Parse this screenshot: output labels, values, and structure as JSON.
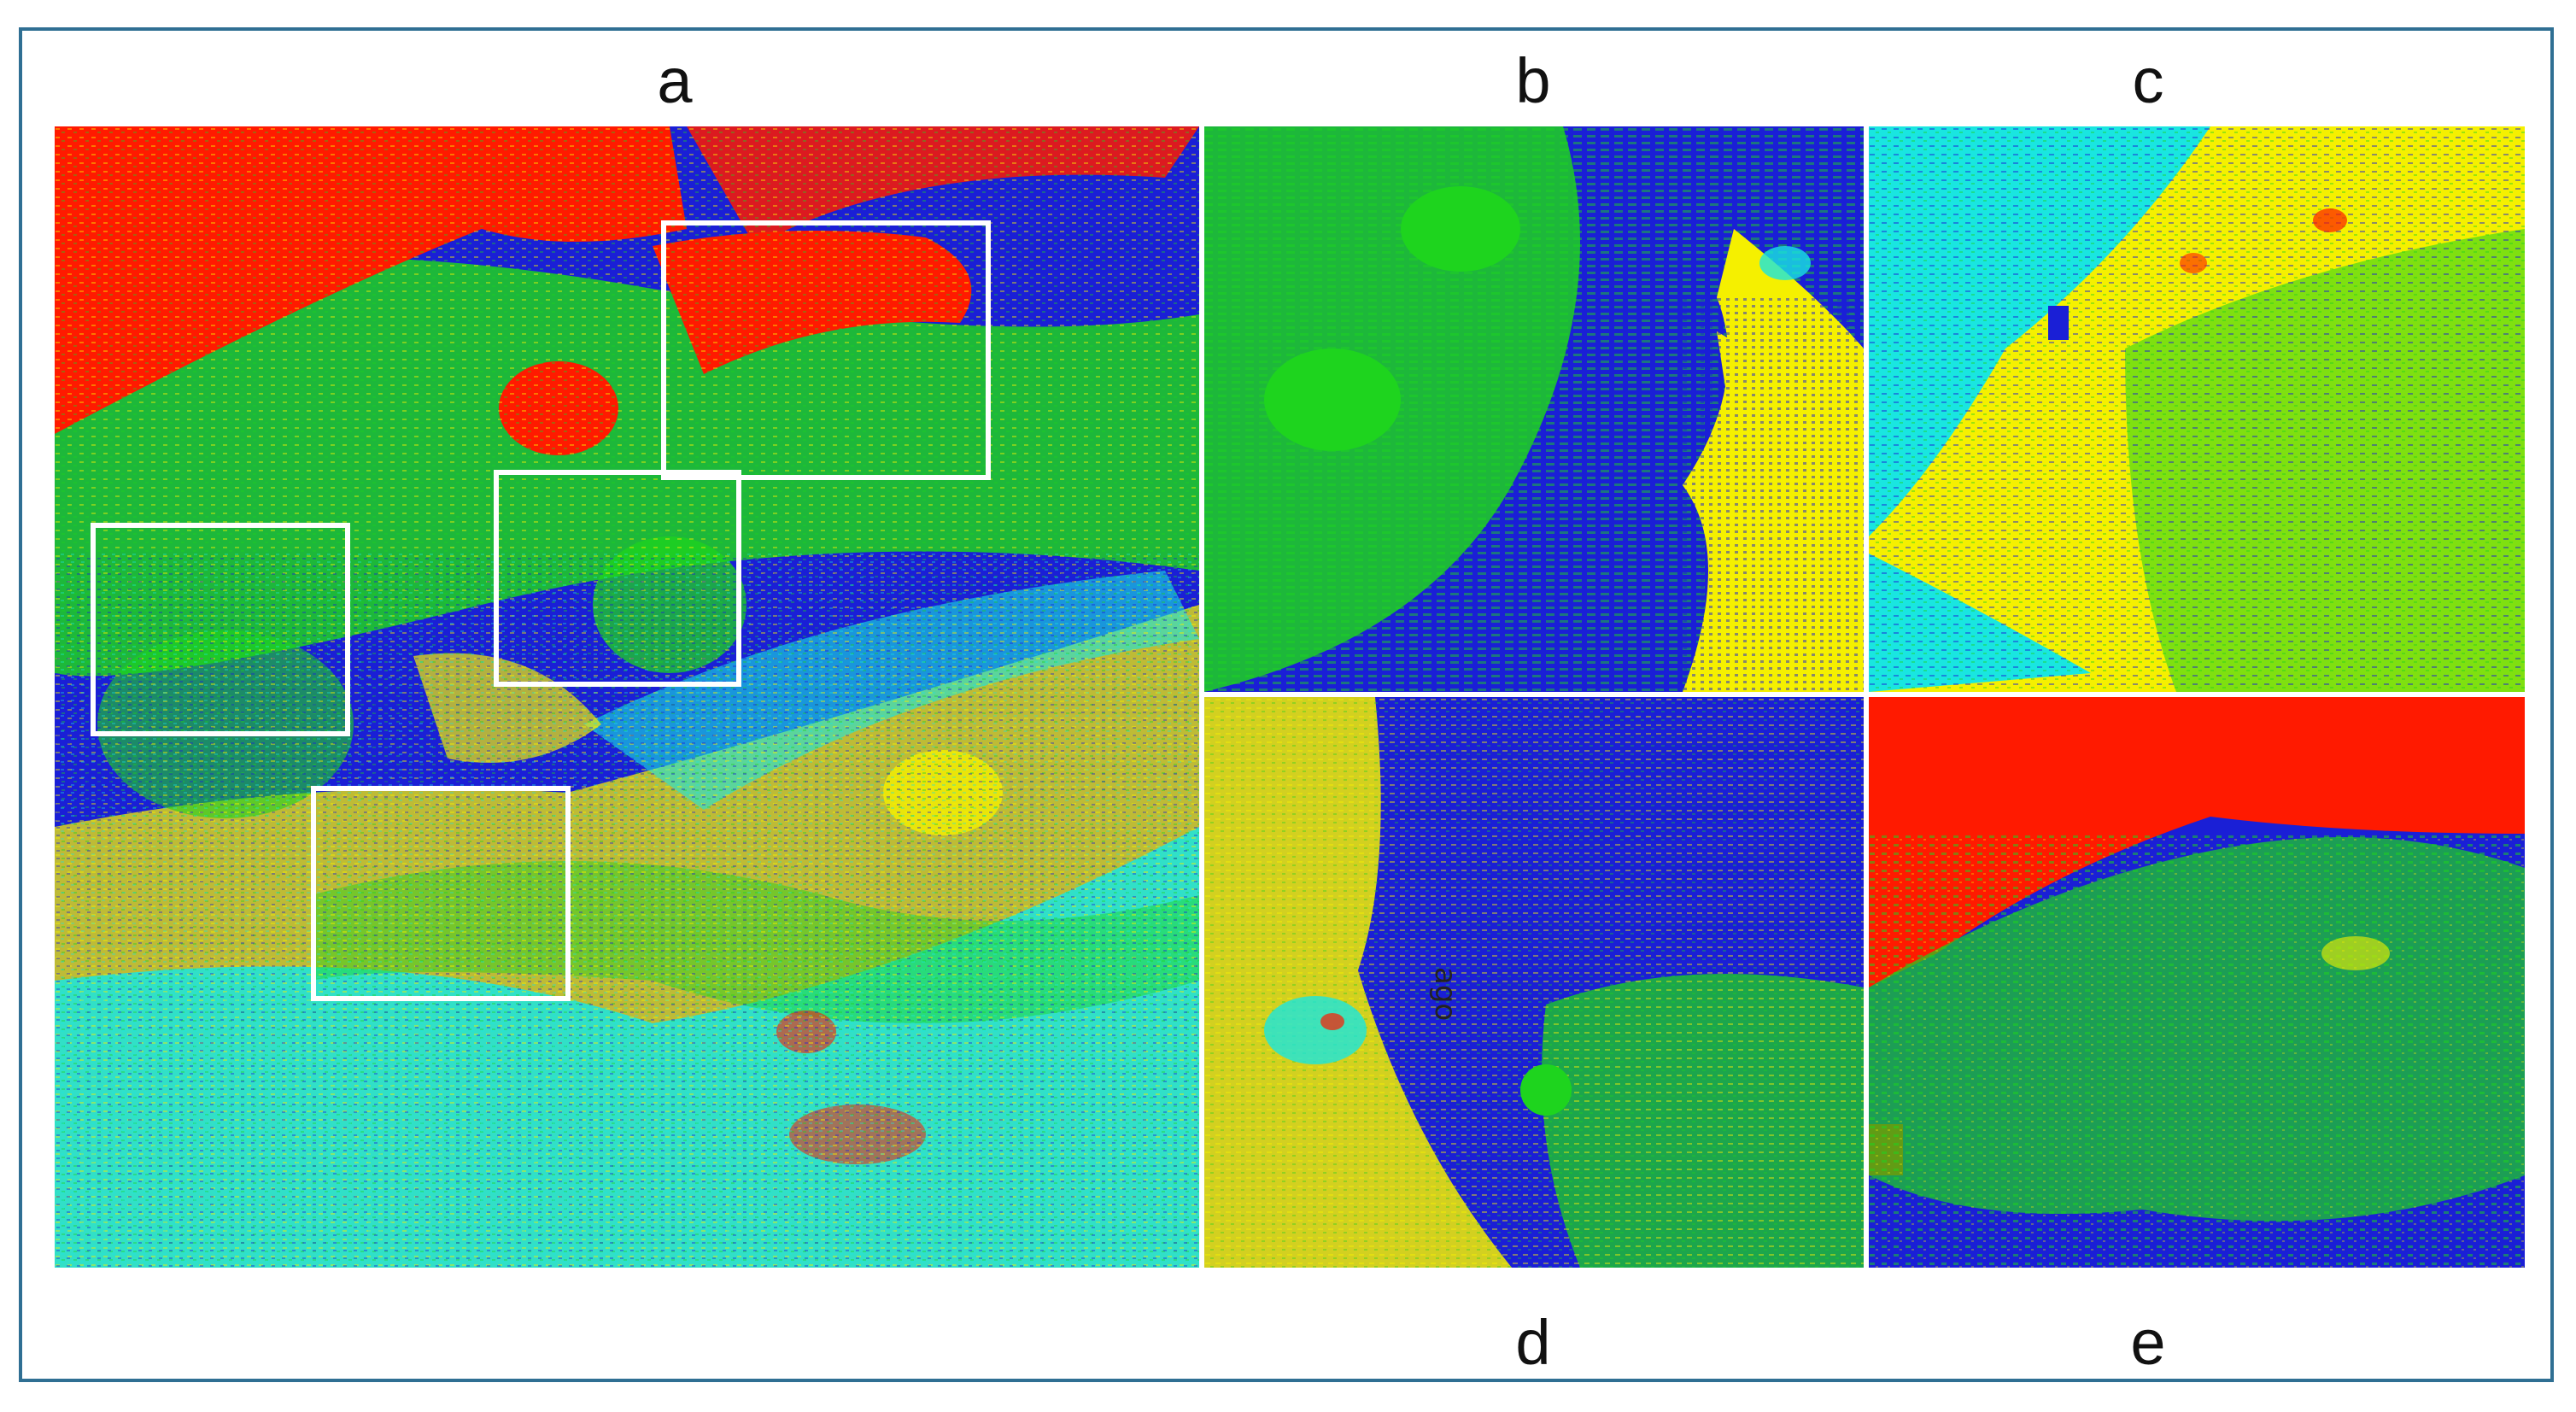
{
  "panels": {
    "a": {
      "label": "a"
    },
    "b": {
      "label": "b"
    },
    "c": {
      "label": "c"
    },
    "d": {
      "label": "d"
    },
    "e": {
      "label": "e"
    }
  },
  "map_text": {
    "d_small_text": "ago"
  },
  "roi_boxes": [
    "b",
    "c",
    "d",
    "e"
  ],
  "colors": {
    "frame": "#2f6f93",
    "red": "#ff1a00",
    "green": "#1ed41e",
    "blue": "#1a1fd6",
    "yellow": "#f5f000",
    "cyan": "#19e6e0",
    "roi_outline": "#ffffff"
  }
}
